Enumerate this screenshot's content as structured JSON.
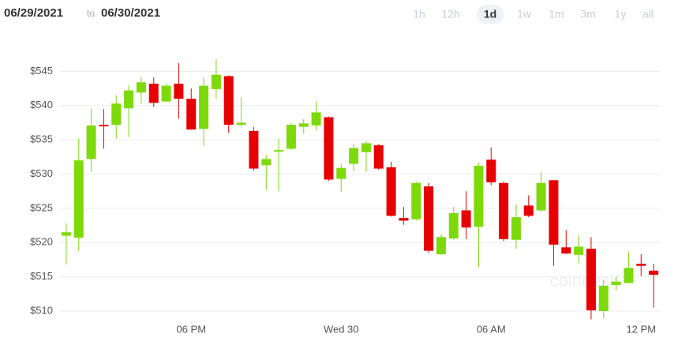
{
  "header": {
    "from": "06/29/2021",
    "to_word": "to",
    "to": "06/30/2021",
    "ranges": [
      "1h",
      "12h",
      "1d",
      "1w",
      "1m",
      "3m",
      "1y",
      "all"
    ],
    "selected_range": 2
  },
  "watermark": "coindesk",
  "chart_data": {
    "type": "candlestick",
    "up_color": "#7ed90a",
    "down_color": "#e60000",
    "grid": true,
    "x": [
      13,
      13.5,
      14,
      14.5,
      15,
      15.5,
      16,
      16.5,
      17,
      17.5,
      18,
      18.5,
      19,
      19.5,
      20,
      20.5,
      21,
      21.5,
      22,
      22.5,
      23,
      23.5,
      24,
      24.5,
      25,
      25.5,
      26,
      26.5,
      27,
      27.5,
      28,
      28.5,
      29,
      29.5,
      30,
      30.5,
      31,
      31.5,
      32,
      32.5,
      33,
      33.5,
      34,
      34.5,
      35,
      35.5,
      36,
      36.5
    ],
    "open": [
      521.0,
      520.7,
      532.2,
      537.2,
      537.2,
      539.6,
      541.9,
      543.2,
      540.6,
      543.2,
      541.0,
      536.6,
      542.4,
      544.3,
      537.2,
      536.3,
      531.3,
      533.3,
      533.7,
      536.9,
      537.1,
      538.3,
      529.3,
      531.5,
      533.2,
      534.2,
      531.0,
      523.6,
      523.4,
      528.2,
      518.3,
      520.6,
      524.7,
      522.3,
      532.1,
      528.7,
      520.4,
      525.4,
      524.7,
      529.1,
      519.3,
      518.2,
      519.1,
      510.0,
      513.8,
      514.1,
      516.9,
      515.9
    ],
    "high": [
      522.8,
      535.2,
      539.6,
      539.5,
      541.5,
      543.0,
      544.2,
      544.1,
      543.2,
      546.2,
      542.5,
      544.1,
      546.8,
      544.4,
      541.2,
      536.9,
      532.8,
      535.2,
      537.5,
      538.0,
      540.6,
      538.4,
      531.5,
      534.4,
      534.8,
      534.4,
      531.8,
      525.2,
      528.9,
      528.7,
      521.2,
      525.2,
      527.5,
      531.7,
      533.9,
      528.9,
      525.6,
      526.9,
      530.3,
      529.1,
      521.8,
      521.1,
      520.8,
      514.5,
      515.0,
      518.7,
      518.3,
      516.9
    ],
    "low": [
      516.8,
      518.8,
      530.3,
      533.7,
      535.2,
      535.4,
      540.3,
      539.8,
      540.5,
      538.1,
      536.5,
      534.1,
      541.0,
      536.0,
      536.9,
      530.5,
      527.6,
      527.5,
      533.5,
      535.9,
      536.4,
      529.0,
      527.4,
      530.4,
      530.3,
      530.6,
      523.8,
      522.6,
      523.2,
      518.5,
      518.2,
      520.4,
      520.5,
      516.4,
      528.4,
      520.2,
      519.1,
      523.7,
      524.5,
      516.6,
      518.3,
      517.0,
      508.8,
      508.9,
      513.0,
      514.0,
      515.1,
      510.5
    ],
    "close": [
      521.5,
      532.0,
      537.1,
      537.0,
      540.3,
      542.2,
      543.4,
      540.4,
      542.9,
      541.0,
      536.5,
      542.9,
      544.5,
      537.2,
      537.5,
      530.8,
      532.2,
      533.5,
      537.2,
      537.4,
      539.0,
      529.2,
      530.9,
      533.8,
      534.5,
      530.8,
      523.9,
      523.2,
      528.7,
      518.8,
      520.8,
      524.3,
      522.2,
      531.2,
      528.8,
      520.5,
      523.7,
      523.9,
      528.7,
      519.7,
      518.4,
      519.4,
      510.1,
      513.7,
      514.3,
      516.3,
      516.6,
      515.3
    ],
    "xlim": [
      12.75,
      36.75
    ],
    "xticks": [
      {
        "value": 18,
        "label": "06 PM"
      },
      {
        "value": 24,
        "label": "Wed 30"
      },
      {
        "value": 30,
        "label": "06 AM"
      },
      {
        "value": 36,
        "label": "12 PM"
      }
    ],
    "ylim": [
      508.5,
      548.5
    ],
    "yticks": [
      {
        "value": 510,
        "label": "$510"
      },
      {
        "value": 515,
        "label": "$515"
      },
      {
        "value": 520,
        "label": "$520"
      },
      {
        "value": 525,
        "label": "$525"
      },
      {
        "value": 530,
        "label": "$530"
      },
      {
        "value": 535,
        "label": "$535"
      },
      {
        "value": 540,
        "label": "$540"
      },
      {
        "value": 545,
        "label": "$545"
      }
    ]
  }
}
